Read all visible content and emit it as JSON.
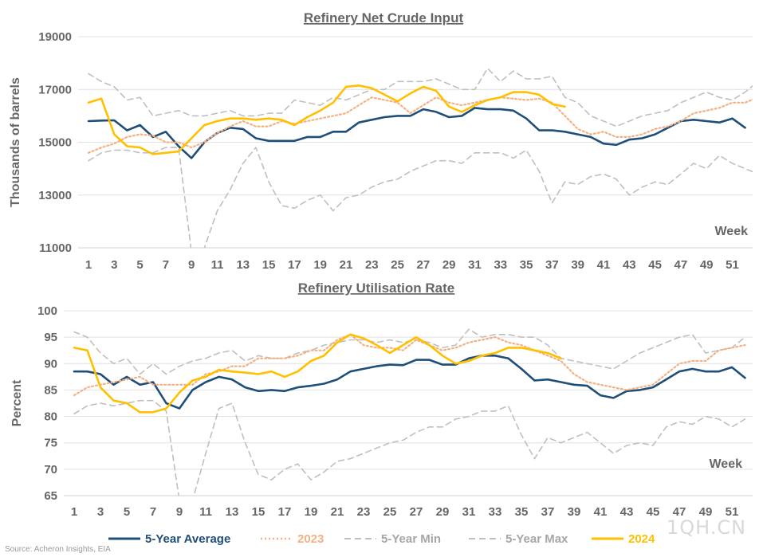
{
  "colors": {
    "avg": "#1f4e79",
    "y2023": "#f4b183",
    "min": "#bfbfbf",
    "max": "#bfbfbf",
    "y2024": "#ffc000",
    "grid": "#e0e0e0",
    "text": "#666666"
  },
  "legend": {
    "avg": "5-Year Average",
    "y2023": "2023",
    "min": "5-Year Min",
    "max": "5-Year Max",
    "y2024": "2024"
  },
  "source": "Source: Acheron Insights, EIA",
  "watermark": "1QH.CN",
  "chart_data": [
    {
      "type": "line",
      "title": "Refinery Net Crude Input",
      "ylabel": "Thousands of barrels",
      "xlabel": "Week",
      "ylim": [
        11000,
        19000
      ],
      "yticks": [
        11000,
        13000,
        15000,
        17000,
        19000
      ],
      "xticks": [
        1,
        3,
        5,
        7,
        9,
        11,
        13,
        15,
        17,
        19,
        21,
        23,
        25,
        27,
        29,
        31,
        33,
        35,
        37,
        39,
        41,
        43,
        45,
        47,
        49,
        51
      ],
      "grid": true,
      "series": [
        {
          "name": "5-Year Min",
          "key": "min",
          "x_start": 1,
          "values": [
            14300,
            14600,
            14700,
            14700,
            14600,
            14600,
            14800,
            14800,
            10800,
            11000,
            12400,
            13200,
            14200,
            14800,
            13500,
            12600,
            12500,
            12800,
            13000,
            12400,
            12900,
            13000,
            13300,
            13500,
            13600,
            13900,
            14100,
            14300,
            14300,
            14200,
            14600,
            14600,
            14600,
            14400,
            14700,
            13900,
            12700,
            13500,
            13400,
            13700,
            13800,
            13600,
            13000,
            13300,
            13500,
            13400,
            13800,
            14200,
            14000,
            14500,
            14200,
            14000,
            13800
          ]
        },
        {
          "name": "5-Year Max",
          "key": "max",
          "x_start": 1,
          "values": [
            17600,
            17300,
            17100,
            16600,
            16700,
            16000,
            16100,
            16200,
            16000,
            16000,
            16100,
            16200,
            16000,
            16000,
            16100,
            16100,
            16600,
            16500,
            16400,
            16700,
            16600,
            16800,
            17000,
            17000,
            17300,
            17300,
            17300,
            17400,
            17200,
            17000,
            17000,
            17800,
            17300,
            17700,
            17400,
            17400,
            17500,
            16700,
            16500,
            16000,
            15800,
            15600,
            15800,
            16000,
            16100,
            16200,
            16500,
            16700,
            16900,
            16700,
            16600,
            16900,
            17300
          ]
        },
        {
          "name": "5-Year Average",
          "key": "avg",
          "x_start": 1,
          "values": [
            15800,
            15820,
            15830,
            15450,
            15650,
            15200,
            15400,
            14850,
            14400,
            15000,
            15350,
            15550,
            15500,
            15150,
            15050,
            15050,
            15050,
            15200,
            15200,
            15400,
            15400,
            15750,
            15850,
            15950,
            16000,
            16000,
            16250,
            16150,
            15950,
            16000,
            16300,
            16250,
            16250,
            16200,
            15900,
            15450,
            15450,
            15400,
            15300,
            15200,
            14950,
            14900,
            15100,
            15150,
            15300,
            15550,
            15800,
            15850,
            15800,
            15750,
            15900,
            15550
          ]
        },
        {
          "name": "2023",
          "key": "y2023",
          "x_start": 1,
          "values": [
            14600,
            14800,
            14950,
            15200,
            15300,
            15250,
            15000,
            15000,
            14800,
            15000,
            15350,
            15600,
            15800,
            15600,
            15600,
            15800,
            15700,
            15800,
            15900,
            16000,
            16100,
            16400,
            16700,
            16600,
            16500,
            16100,
            16400,
            16700,
            16500,
            16400,
            16500,
            16600,
            16700,
            16650,
            16600,
            16650,
            16500,
            16000,
            15500,
            15300,
            15400,
            15200,
            15200,
            15300,
            15500,
            15600,
            15800,
            16100,
            16200,
            16300,
            16500,
            16500,
            16700
          ]
        },
        {
          "name": "2024",
          "key": "y2024",
          "x_start": 1,
          "values": [
            16500,
            16650,
            15300,
            14850,
            14800,
            14550,
            14600,
            14650,
            15150,
            15650,
            15800,
            15900,
            15900,
            15850,
            15900,
            15850,
            15650,
            15950,
            16200,
            16500,
            17100,
            17150,
            17050,
            16800,
            16550,
            16850,
            17100,
            16950,
            16350,
            16150,
            16400,
            16600,
            16700,
            16900,
            16900,
            16800,
            16450,
            16350
          ]
        }
      ]
    },
    {
      "type": "line",
      "title": "Refinery Utilisation Rate",
      "ylabel": "Percent",
      "xlabel": "Week",
      "ylim": [
        65,
        100
      ],
      "yticks": [
        65,
        70,
        75,
        80,
        85,
        90,
        95,
        100
      ],
      "xticks": [
        1,
        3,
        5,
        7,
        9,
        11,
        13,
        15,
        17,
        19,
        21,
        23,
        25,
        27,
        29,
        31,
        33,
        35,
        37,
        39,
        41,
        43,
        45,
        47,
        49,
        51
      ],
      "grid": true,
      "series": [
        {
          "name": "5-Year Min",
          "key": "min",
          "x_start": 1,
          "values": [
            80.5,
            82.0,
            82.5,
            82.0,
            82.5,
            83.0,
            83.0,
            81.0,
            63.5,
            64.0,
            73.0,
            81.5,
            82.5,
            75.0,
            69.0,
            68.0,
            70.0,
            71.0,
            68.0,
            69.5,
            71.5,
            72.0,
            73.0,
            74.0,
            75.0,
            75.5,
            77.0,
            78.0,
            78.0,
            79.5,
            80.0,
            81.0,
            81.0,
            82.0,
            76.5,
            72.0,
            76.0,
            75.0,
            76.0,
            77.0,
            75.0,
            73.0,
            74.5,
            75.0,
            74.5,
            78.0,
            79.0,
            78.5,
            80.0,
            79.5,
            78.0,
            79.5
          ]
        },
        {
          "name": "5-Year Max",
          "key": "max",
          "x_start": 1,
          "values": [
            96.0,
            95.0,
            92.0,
            90.0,
            91.0,
            88.0,
            90.0,
            88.0,
            89.5,
            90.5,
            91.0,
            92.0,
            92.5,
            90.5,
            91.5,
            91.0,
            91.0,
            92.0,
            92.5,
            93.5,
            94.0,
            94.5,
            94.5,
            94.0,
            94.5,
            94.0,
            94.5,
            94.0,
            93.0,
            93.5,
            96.5,
            95.0,
            95.5,
            95.5,
            95.0,
            95.0,
            93.5,
            91.0,
            90.5,
            90.0,
            89.5,
            89.0,
            90.5,
            92.0,
            93.0,
            94.0,
            95.0,
            95.5,
            92.0,
            92.5,
            93.0,
            95.0
          ]
        },
        {
          "name": "5-Year Average",
          "key": "avg",
          "x_start": 1,
          "values": [
            88.5,
            88.5,
            88.0,
            86.0,
            87.5,
            86.0,
            86.5,
            82.5,
            81.5,
            85.0,
            86.5,
            87.5,
            87.0,
            85.5,
            84.8,
            85.0,
            84.8,
            85.5,
            85.8,
            86.2,
            87.0,
            88.5,
            89.0,
            89.5,
            89.8,
            89.7,
            90.7,
            90.7,
            89.8,
            89.8,
            91.0,
            91.5,
            91.5,
            91.0,
            89.0,
            86.8,
            87.0,
            86.5,
            86.0,
            85.8,
            84.0,
            83.5,
            84.8,
            85.0,
            85.5,
            87.0,
            88.5,
            89.0,
            88.5,
            88.5,
            89.3,
            87.3
          ]
        },
        {
          "name": "2023",
          "key": "y2023",
          "x_start": 1,
          "values": [
            84.0,
            85.5,
            86.0,
            86.5,
            87.0,
            87.5,
            86.0,
            86.0,
            86.0,
            86.0,
            88.0,
            88.5,
            89.5,
            89.5,
            91.0,
            91.0,
            91.0,
            91.5,
            92.5,
            92.5,
            94.5,
            95.5,
            93.5,
            93.0,
            93.0,
            92.5,
            94.5,
            93.5,
            92.5,
            93.0,
            94.0,
            94.5,
            95.0,
            94.0,
            93.5,
            92.5,
            91.5,
            90.5,
            88.0,
            86.5,
            86.0,
            85.5,
            85.0,
            85.5,
            86.0,
            88.0,
            90.0,
            90.5,
            90.5,
            92.5,
            93.0,
            93.5
          ]
        },
        {
          "name": "2024",
          "key": "y2024",
          "x_start": 1,
          "values": [
            93.0,
            92.5,
            85.5,
            83.0,
            82.5,
            80.8,
            80.8,
            81.5,
            84.5,
            86.8,
            87.5,
            88.8,
            88.5,
            88.3,
            88.0,
            88.5,
            87.5,
            88.5,
            90.5,
            91.5,
            94.0,
            95.5,
            94.8,
            93.5,
            92.0,
            93.5,
            95.0,
            93.5,
            91.5,
            90.0,
            90.5,
            91.5,
            92.0,
            93.0,
            93.0,
            92.5,
            92.0,
            91.0
          ]
        }
      ]
    }
  ]
}
